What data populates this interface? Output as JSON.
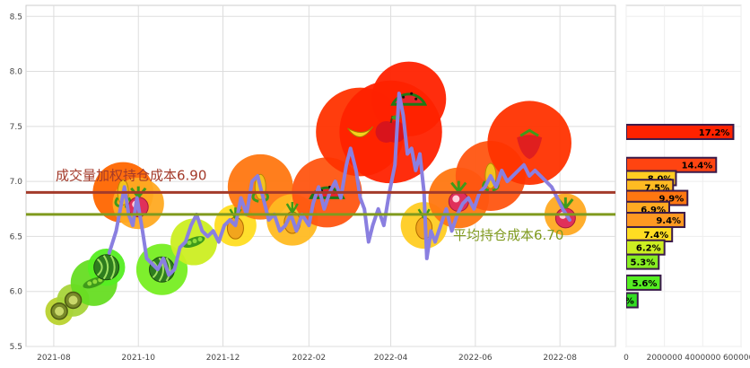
{
  "chart_data": [
    {
      "type": "line",
      "title": "",
      "xlabel": "",
      "ylabel": "",
      "ylim": [
        5.5,
        8.6
      ],
      "grid": true,
      "yticks": [
        "5.5",
        "6.0",
        "6.5",
        "7.0",
        "7.5",
        "8.0",
        "8.5"
      ],
      "xticks": [
        {
          "label": "2021-08",
          "date": "2021-08-01"
        },
        {
          "label": "2021-10",
          "date": "2021-10-01"
        },
        {
          "label": "2021-12",
          "date": "2021-12-01"
        },
        {
          "label": "2022-02",
          "date": "2022-02-01"
        },
        {
          "label": "2022-04",
          "date": "2022-04-01"
        },
        {
          "label": "2022-06",
          "date": "2022-06-01"
        },
        {
          "label": "2022-08",
          "date": "2022-08-01"
        }
      ],
      "price_series": [
        [
          "2021-09-10",
          6.35
        ],
        [
          "2021-09-15",
          6.55
        ],
        [
          "2021-09-18",
          6.75
        ],
        [
          "2021-09-21",
          6.95
        ],
        [
          "2021-09-24",
          6.7
        ],
        [
          "2021-09-27",
          6.6
        ],
        [
          "2021-09-30",
          6.85
        ],
        [
          "2021-10-04",
          6.55
        ],
        [
          "2021-10-07",
          6.3
        ],
        [
          "2021-10-11",
          6.25
        ],
        [
          "2021-10-15",
          6.2
        ],
        [
          "2021-10-19",
          6.3
        ],
        [
          "2021-10-23",
          6.15
        ],
        [
          "2021-10-27",
          6.2
        ],
        [
          "2021-10-31",
          6.4
        ],
        [
          "2021-11-04",
          6.45
        ],
        [
          "2021-11-08",
          6.6
        ],
        [
          "2021-11-12",
          6.7
        ],
        [
          "2021-11-16",
          6.55
        ],
        [
          "2021-11-20",
          6.5
        ],
        [
          "2021-11-24",
          6.55
        ],
        [
          "2021-11-28",
          6.45
        ],
        [
          "2021-12-02",
          6.6
        ],
        [
          "2021-12-06",
          6.65
        ],
        [
          "2021-12-10",
          6.6
        ],
        [
          "2021-12-14",
          6.85
        ],
        [
          "2021-12-18",
          6.7
        ],
        [
          "2021-12-22",
          7.0
        ],
        [
          "2021-12-26",
          7.05
        ],
        [
          "2021-12-30",
          6.85
        ],
        [
          "2022-01-03",
          6.65
        ],
        [
          "2022-01-07",
          6.7
        ],
        [
          "2022-01-11",
          6.55
        ],
        [
          "2022-01-15",
          6.6
        ],
        [
          "2022-01-19",
          6.7
        ],
        [
          "2022-01-23",
          6.55
        ],
        [
          "2022-01-27",
          6.7
        ],
        [
          "2022-02-01",
          6.6
        ],
        [
          "2022-02-04",
          6.8
        ],
        [
          "2022-02-08",
          6.95
        ],
        [
          "2022-02-12",
          6.75
        ],
        [
          "2022-02-16",
          6.9
        ],
        [
          "2022-02-20",
          7.0
        ],
        [
          "2022-02-24",
          6.85
        ],
        [
          "2022-02-28",
          7.15
        ],
        [
          "2022-03-03",
          7.3
        ],
        [
          "2022-03-07",
          7.1
        ],
        [
          "2022-03-10",
          6.85
        ],
        [
          "2022-03-13",
          6.75
        ],
        [
          "2022-03-16",
          6.45
        ],
        [
          "2022-03-19",
          6.6
        ],
        [
          "2022-03-23",
          6.75
        ],
        [
          "2022-03-27",
          6.6
        ],
        [
          "2022-03-31",
          6.9
        ],
        [
          "2022-04-04",
          7.15
        ],
        [
          "2022-04-07",
          7.8
        ],
        [
          "2022-04-10",
          7.6
        ],
        [
          "2022-04-13",
          7.25
        ],
        [
          "2022-04-16",
          7.3
        ],
        [
          "2022-04-19",
          7.1
        ],
        [
          "2022-04-22",
          7.25
        ],
        [
          "2022-04-25",
          6.9
        ],
        [
          "2022-04-27",
          6.3
        ],
        [
          "2022-04-30",
          6.55
        ],
        [
          "2022-05-03",
          6.45
        ],
        [
          "2022-05-07",
          6.6
        ],
        [
          "2022-05-11",
          6.75
        ],
        [
          "2022-05-15",
          6.55
        ],
        [
          "2022-05-19",
          6.7
        ],
        [
          "2022-05-23",
          6.8
        ],
        [
          "2022-05-27",
          6.85
        ],
        [
          "2022-05-31",
          6.75
        ],
        [
          "2022-06-04",
          6.9
        ],
        [
          "2022-06-08",
          6.95
        ],
        [
          "2022-06-12",
          7.05
        ],
        [
          "2022-06-16",
          6.95
        ],
        [
          "2022-06-20",
          7.1
        ],
        [
          "2022-06-24",
          7.0
        ],
        [
          "2022-06-28",
          7.05
        ],
        [
          "2022-07-02",
          7.1
        ],
        [
          "2022-07-06",
          7.15
        ],
        [
          "2022-07-10",
          7.05
        ],
        [
          "2022-07-14",
          7.1
        ],
        [
          "2022-07-18",
          7.05
        ],
        [
          "2022-07-22",
          7.0
        ],
        [
          "2022-07-26",
          6.95
        ],
        [
          "2022-07-30",
          6.85
        ],
        [
          "2022-08-03",
          6.75
        ],
        [
          "2022-08-08",
          6.65
        ]
      ],
      "reference_lines": [
        {
          "label": "成交量加权持仓成本6.90",
          "value": 6.9,
          "color": "#a33a2a"
        },
        {
          "label": "平均持仓成本6.70",
          "value": 6.7,
          "color": "#7f9a1e"
        }
      ],
      "bubbles": [
        {
          "date": "2021-08-05",
          "price": 5.82,
          "size": 0.6,
          "color": "#b9d22e"
        },
        {
          "date": "2021-08-15",
          "price": 5.92,
          "size": 0.7,
          "color": "#a8d43a"
        },
        {
          "date": "2021-08-30",
          "price": 6.08,
          "size": 1.0,
          "color": "#66dd22"
        },
        {
          "date": "2021-09-08",
          "price": 6.22,
          "size": 0.8,
          "color": "#55ee22"
        },
        {
          "date": "2021-09-20",
          "price": 6.9,
          "size": 1.3,
          "color": "#ff6600"
        },
        {
          "date": "2021-10-01",
          "price": 6.8,
          "size": 1.1,
          "color": "#ffaa22"
        },
        {
          "date": "2021-10-18",
          "price": 6.2,
          "size": 1.1,
          "color": "#77ee22"
        },
        {
          "date": "2021-11-10",
          "price": 6.45,
          "size": 1.0,
          "color": "#ccee22"
        },
        {
          "date": "2021-12-10",
          "price": 6.6,
          "size": 0.9,
          "color": "#ffdd22"
        },
        {
          "date": "2021-12-28",
          "price": 6.95,
          "size": 1.4,
          "color": "#ff7711"
        },
        {
          "date": "2022-01-20",
          "price": 6.65,
          "size": 1.1,
          "color": "#ffbb22"
        },
        {
          "date": "2022-02-14",
          "price": 6.9,
          "size": 1.5,
          "color": "#ff5511"
        },
        {
          "date": "2022-03-10",
          "price": 7.45,
          "size": 1.9,
          "color": "#ff3300"
        },
        {
          "date": "2022-04-01",
          "price": 7.45,
          "size": 2.2,
          "color": "#ff2200"
        },
        {
          "date": "2022-04-14",
          "price": 7.75,
          "size": 1.6,
          "color": "#ff2200"
        },
        {
          "date": "2022-04-25",
          "price": 6.6,
          "size": 1.0,
          "color": "#ffcc22"
        },
        {
          "date": "2022-05-20",
          "price": 6.85,
          "size": 1.3,
          "color": "#ff7711"
        },
        {
          "date": "2022-06-12",
          "price": 7.05,
          "size": 1.5,
          "color": "#ff5511"
        },
        {
          "date": "2022-07-10",
          "price": 7.35,
          "size": 1.8,
          "color": "#ff3300"
        },
        {
          "date": "2022-08-05",
          "price": 6.7,
          "size": 0.9,
          "color": "#ffaa22"
        }
      ]
    },
    {
      "type": "bar",
      "orientation": "horizontal",
      "title": "",
      "xlim": [
        0,
        6000000
      ],
      "xticks": [
        "0",
        "2000000",
        "4000000",
        "6000000"
      ],
      "ylim": [
        5.5,
        8.6
      ],
      "bars": [
        {
          "price": 7.45,
          "value": 5600000,
          "label": "17.2%",
          "color": "#ff2200"
        },
        {
          "price": 7.15,
          "value": 4700000,
          "label": "14.4%",
          "color": "#ff4411"
        },
        {
          "price": 7.03,
          "value": 2600000,
          "label": "8.0%",
          "color": "#ffcc22"
        },
        {
          "price": 6.95,
          "value": 2450000,
          "label": "7.5%",
          "color": "#ffbb22"
        },
        {
          "price": 6.85,
          "value": 3200000,
          "label": "9.9%",
          "color": "#ff7711"
        },
        {
          "price": 6.75,
          "value": 2250000,
          "label": "6.9%",
          "color": "#ffaa22"
        },
        {
          "price": 6.65,
          "value": 3050000,
          "label": "9.4%",
          "color": "#ff9922"
        },
        {
          "price": 6.52,
          "value": 2400000,
          "label": "7.4%",
          "color": "#ffdd22"
        },
        {
          "price": 6.4,
          "value": 2000000,
          "label": "6.2%",
          "color": "#ccee22"
        },
        {
          "price": 6.27,
          "value": 1700000,
          "label": "5.3%",
          "color": "#88ee22"
        },
        {
          "price": 6.08,
          "value": 1800000,
          "label": "5.6%",
          "color": "#55ee22"
        },
        {
          "price": 5.92,
          "value": 600000,
          "label": "%",
          "color": "#33dd22"
        }
      ]
    }
  ]
}
